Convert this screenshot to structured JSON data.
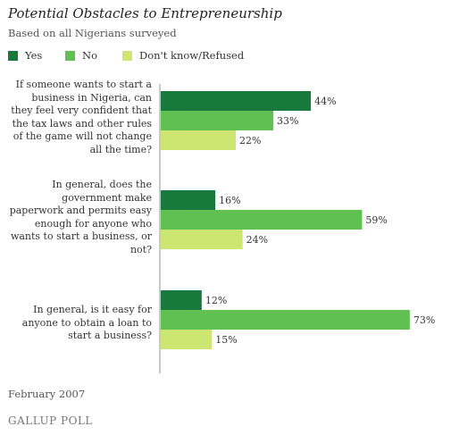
{
  "title": "Potential Obstacles to Entrepreneurship",
  "subtitle": "Based on all Nigerians surveyed",
  "footer": "February 2007",
  "logo": "GALLUP POLL",
  "chart_data": {
    "type": "bar",
    "orientation": "horizontal",
    "title": "Potential Obstacles to Entrepreneurship",
    "subtitle": "Based on all Nigerians surveyed",
    "categories": [
      "If someone wants to start a business in Nigeria, can they feel very confident that the tax laws and other rules of the game will not change all the time?",
      "In general, does the government make paperwork and permits easy enough for anyone who wants to start a business, or not?",
      "In general, is it easy for anyone to obtain a loan to start a business?"
    ],
    "series": [
      {
        "name": "Yes",
        "color": "#177a3c",
        "values": [
          44,
          16,
          12
        ]
      },
      {
        "name": "No",
        "color": "#60c152",
        "values": [
          33,
          59,
          73
        ]
      },
      {
        "name": "Don't know/Refused",
        "color": "#cde672",
        "values": [
          22,
          24,
          15
        ]
      }
    ],
    "value_suffix": "%",
    "xlim": [
      0,
      100
    ],
    "grid": false,
    "legend_position": "top-left"
  }
}
